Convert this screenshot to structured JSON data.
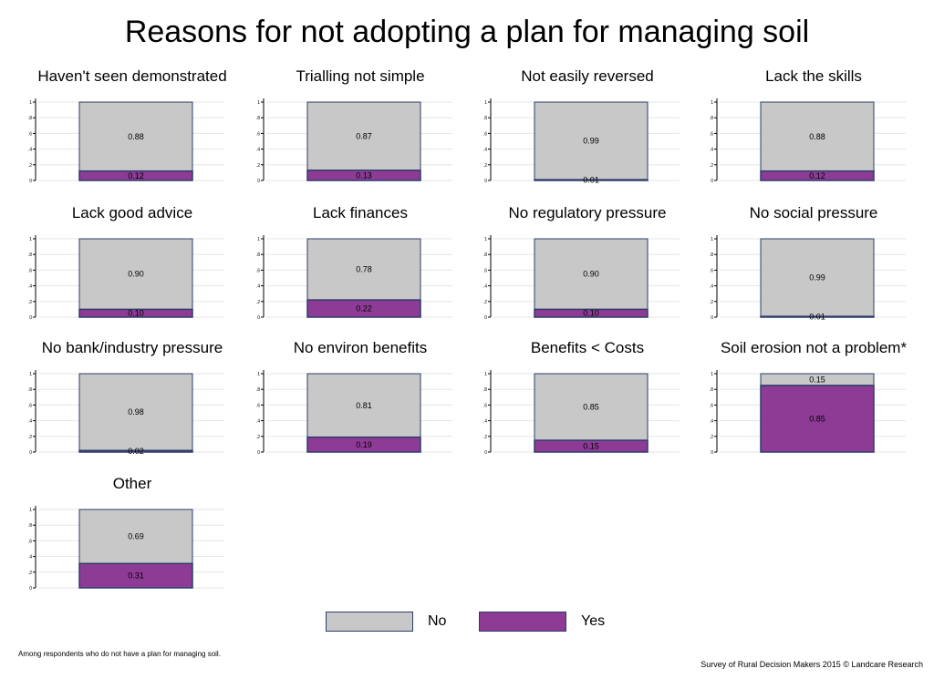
{
  "title": "Reasons for not adopting a plan for managing soil",
  "legend": {
    "no_label": "No",
    "yes_label": "Yes"
  },
  "colors": {
    "no": "#c8c8c8",
    "yes": "#8e3b96",
    "edge": "#2d3d6a",
    "grid": "#e6e6e6"
  },
  "footnote": "Among respondents who do not have a plan for managing soil.",
  "source": "Survey of Rural Decision Makers 2015 © Landcare Research",
  "chart_data": {
    "type": "bar",
    "stacked": true,
    "ylim": [
      0,
      1
    ],
    "yticks": [
      "0",
      ".2",
      ".4",
      ".6",
      ".8",
      "1"
    ],
    "series_names": [
      "No",
      "Yes"
    ],
    "panels": [
      {
        "title": "Haven't seen demonstrated",
        "no": 0.88,
        "yes": 0.12,
        "no_label": "0.88",
        "yes_label": "0.12"
      },
      {
        "title": "Trialling not simple",
        "no": 0.87,
        "yes": 0.13,
        "no_label": "0.87",
        "yes_label": "0.13"
      },
      {
        "title": "Not easily reversed",
        "no": 0.99,
        "yes": 0.01,
        "no_label": "0.99",
        "yes_label": "0.01"
      },
      {
        "title": "Lack the skills",
        "no": 0.88,
        "yes": 0.12,
        "no_label": "0.88",
        "yes_label": "0.12"
      },
      {
        "title": "Lack good advice",
        "no": 0.9,
        "yes": 0.1,
        "no_label": "0.90",
        "yes_label": "0.10"
      },
      {
        "title": "Lack finances",
        "no": 0.78,
        "yes": 0.22,
        "no_label": "0.78",
        "yes_label": "0.22"
      },
      {
        "title": "No regulatory pressure",
        "no": 0.9,
        "yes": 0.1,
        "no_label": "0.90",
        "yes_label": "0.10"
      },
      {
        "title": "No social pressure",
        "no": 0.99,
        "yes": 0.01,
        "no_label": "0.99",
        "yes_label": "0.01"
      },
      {
        "title": "No bank/industry pressure",
        "no": 0.98,
        "yes": 0.02,
        "no_label": "0.98",
        "yes_label": "0.02"
      },
      {
        "title": "No environ benefits",
        "no": 0.81,
        "yes": 0.19,
        "no_label": "0.81",
        "yes_label": "0.19"
      },
      {
        "title": "Benefits < Costs",
        "no": 0.85,
        "yes": 0.15,
        "no_label": "0.85",
        "yes_label": "0.15"
      },
      {
        "title": "Soil erosion not a problem*",
        "no": 0.15,
        "yes": 0.85,
        "no_label": "0.15",
        "yes_label": "0.85"
      },
      {
        "title": "Other",
        "no": 0.69,
        "yes": 0.31,
        "no_label": "0.69",
        "yes_label": "0.31"
      }
    ]
  }
}
